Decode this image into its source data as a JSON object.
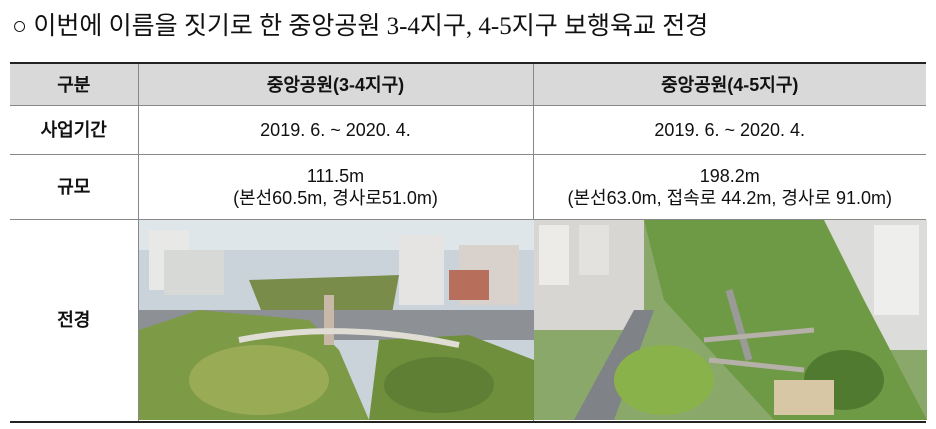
{
  "header": {
    "title": "○ 이번에 이름을 짓기로 한 중앙공원 3-4지구, 4-5지구 보행육교 전경"
  },
  "table": {
    "columns": [
      "구분",
      "중앙공원(3-4지구)",
      "중앙공원(4-5지구)"
    ],
    "rows": [
      [
        "사업기간",
        "2019. 6. ~ 2020. 4.",
        "2019. 6. ~ 2020. 4."
      ],
      [
        "규모",
        [
          "111.5m",
          "(본선60.5m, 경사로51.0m)"
        ],
        [
          "198.2m",
          "(본선63.0m, 접속로 44.2m, 경사로 91.0m)"
        ]
      ],
      [
        "전경"
      ]
    ]
  }
}
